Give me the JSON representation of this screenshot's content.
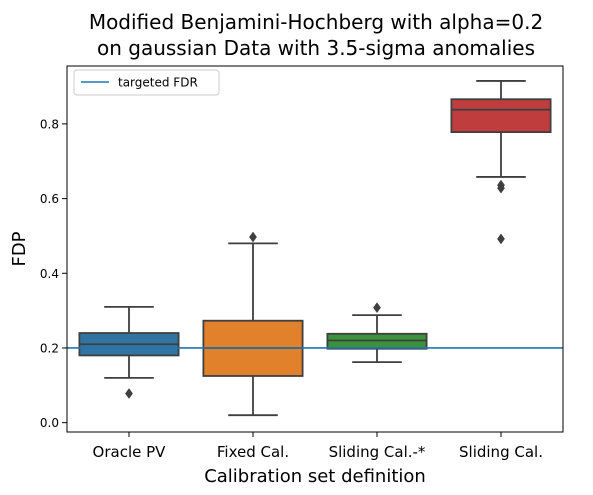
{
  "chart_data": {
    "type": "box",
    "title": [
      "Modified Benjamini-Hochberg with alpha=0.2",
      "on gaussian Data with 3.5-sigma anomalies"
    ],
    "xlabel": "Calibration set definition",
    "ylabel": "FDP",
    "ylim": [
      -0.025,
      0.955
    ],
    "yticks": [
      0.0,
      0.2,
      0.4,
      0.6,
      0.8
    ],
    "ytick_labels": [
      "0.0",
      "0.2",
      "0.4",
      "0.6",
      "0.8"
    ],
    "grid": false,
    "legend": {
      "position": "top-left",
      "entries": [
        {
          "label": "targeted FDR",
          "color": "#1f77b4"
        }
      ]
    },
    "reference_line": {
      "label": "targeted FDR",
      "y": 0.2,
      "color": "#1f77b4"
    },
    "categories": [
      "Oracle PV",
      "Fixed Cal.",
      "Sliding Cal.-*",
      "Sliding Cal."
    ],
    "boxes": [
      {
        "name": "Oracle PV",
        "color": "#3274a1",
        "q1": 0.18,
        "median": 0.21,
        "q3": 0.24,
        "whisker_low": 0.12,
        "whisker_high": 0.31,
        "outliers": [
          0.078
        ]
      },
      {
        "name": "Fixed Cal.",
        "color": "#e1812c",
        "q1": 0.125,
        "median": 0.2,
        "q3": 0.273,
        "whisker_low": 0.02,
        "whisker_high": 0.48,
        "outliers": [
          0.497
        ]
      },
      {
        "name": "Sliding Cal.-*",
        "color": "#3a923a",
        "q1": 0.198,
        "median": 0.22,
        "q3": 0.238,
        "whisker_low": 0.162,
        "whisker_high": 0.288,
        "outliers": [
          0.308
        ]
      },
      {
        "name": "Sliding Cal.",
        "color": "#c03d3e",
        "q1": 0.778,
        "median": 0.838,
        "q3": 0.866,
        "whisker_low": 0.658,
        "whisker_high": 0.915,
        "outliers": [
          0.628,
          0.636,
          0.492
        ]
      }
    ]
  }
}
